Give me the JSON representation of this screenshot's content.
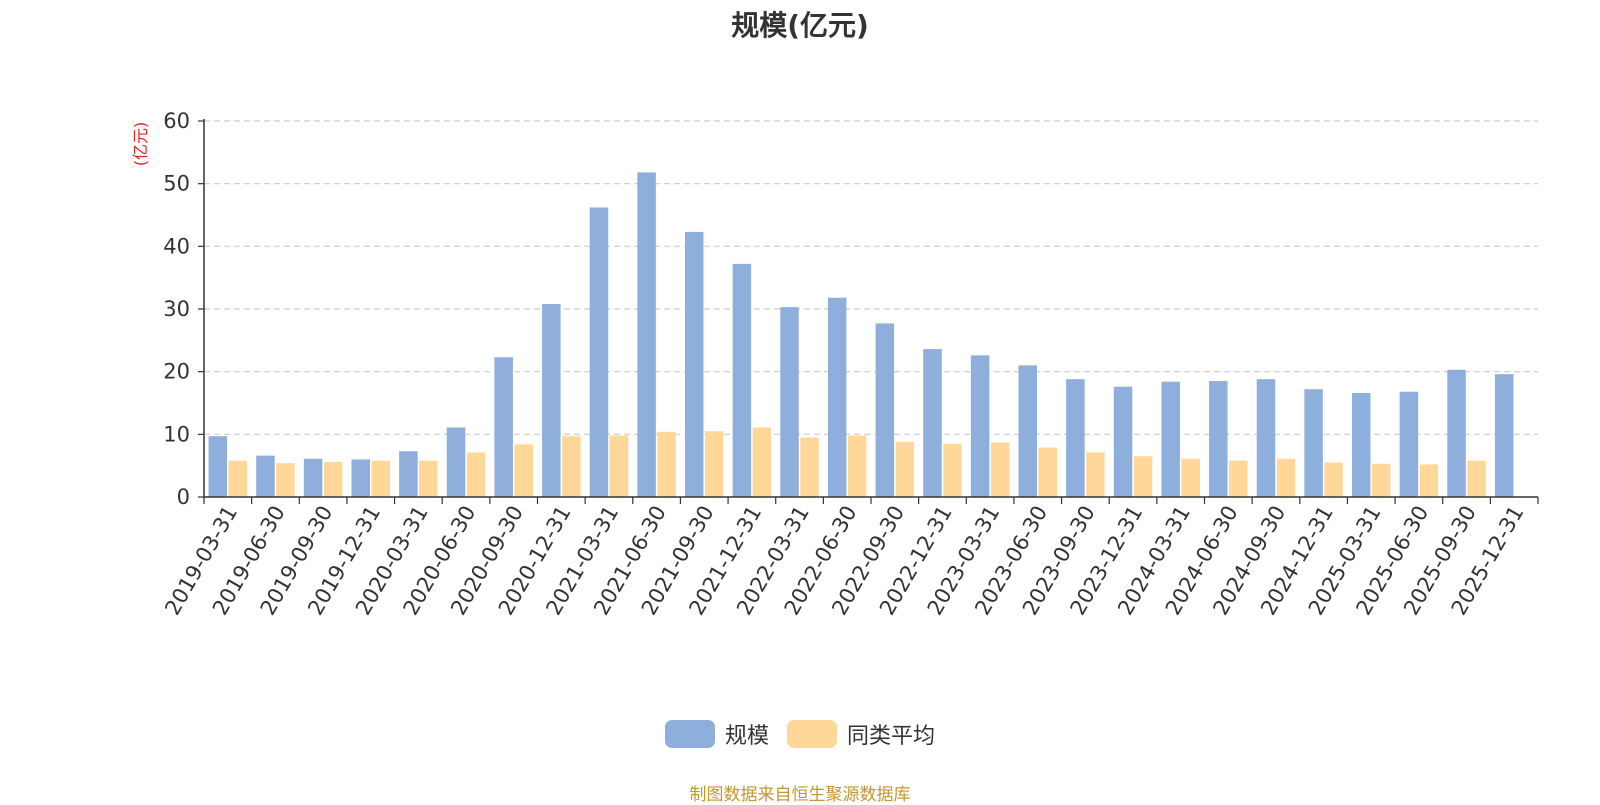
{
  "chart_data": {
    "type": "bar",
    "title": "规模(亿元)",
    "ylabel": "(亿元)",
    "xlabel": "",
    "ylim": [
      0,
      60
    ],
    "yticks": [
      0,
      10,
      20,
      30,
      40,
      50,
      60
    ],
    "grid": true,
    "legend_position": "bottom-center",
    "categories": [
      "2019-03-31",
      "2019-06-30",
      "2019-09-30",
      "2019-12-31",
      "2020-03-31",
      "2020-06-30",
      "2020-09-30",
      "2020-12-31",
      "2021-03-31",
      "2021-06-30",
      "2021-09-30",
      "2021-12-31",
      "2022-03-31",
      "2022-06-30",
      "2022-09-30",
      "2022-12-31",
      "2023-03-31",
      "2023-06-30",
      "2023-09-30",
      "2023-12-31",
      "2024-03-31",
      "2024-06-30",
      "2024-09-30",
      "2024-12-31",
      "2025-03-31",
      "2025-06-30",
      "2025-09-30",
      "2025-12-31"
    ],
    "series": [
      {
        "name": "规模",
        "color": "#8eaedb",
        "values": [
          9.7,
          6.6,
          6.1,
          6.0,
          7.3,
          11.1,
          22.3,
          30.8,
          46.2,
          51.8,
          42.3,
          37.2,
          30.3,
          31.8,
          27.7,
          23.6,
          22.6,
          21.0,
          18.8,
          17.6,
          18.4,
          18.5,
          18.8,
          17.2,
          16.6,
          16.8,
          20.3,
          19.6
        ]
      },
      {
        "name": "同类平均",
        "color": "#ffd899",
        "values": [
          5.8,
          5.4,
          5.6,
          5.8,
          5.8,
          7.1,
          8.4,
          9.7,
          9.8,
          10.4,
          10.5,
          11.1,
          9.5,
          9.8,
          8.8,
          8.5,
          8.7,
          7.9,
          7.1,
          6.5,
          6.1,
          5.8,
          6.1,
          5.5,
          5.3,
          5.2,
          5.8,
          null
        ]
      }
    ]
  },
  "footer": {
    "source": "制图数据来自恒生聚源数据库"
  },
  "colors": {
    "axis_label_red": "#e0201b",
    "source_text": "#c8962e",
    "grid": "#cccccc"
  }
}
